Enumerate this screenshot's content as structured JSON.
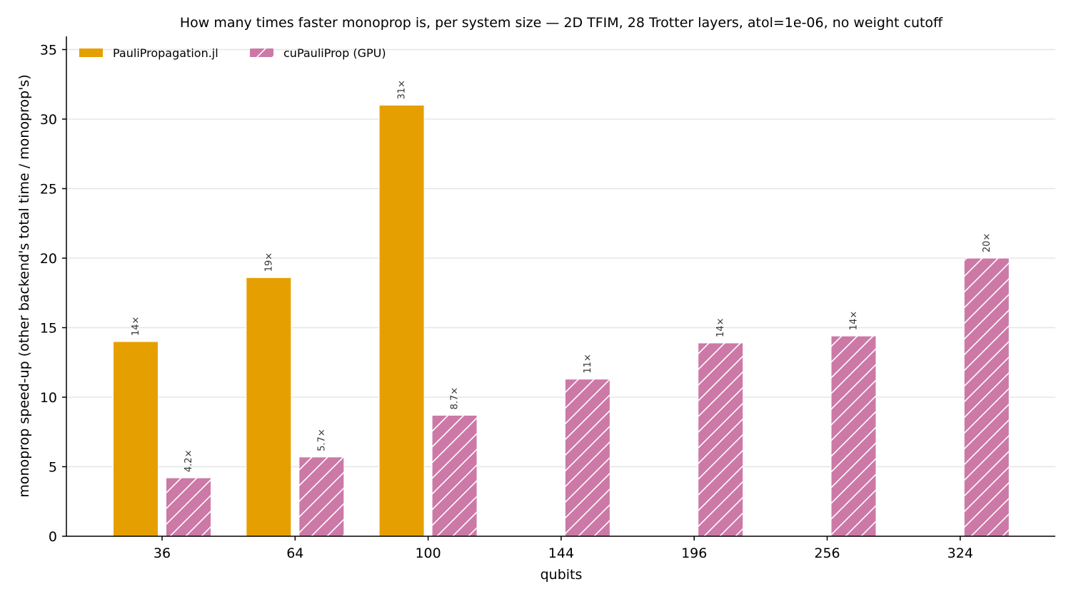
{
  "chart_data": {
    "type": "bar",
    "title": "How many times faster monoprop is, per system size — 2D TFIM, 28 Trotter layers, atol=1e-06, no weight cutoff",
    "xlabel": "qubits",
    "ylabel": "monoprop speed-up  (other backend's total time / monoprop's)",
    "categories": [
      "36",
      "64",
      "100",
      "144",
      "196",
      "256",
      "324"
    ],
    "ylim": [
      0,
      36
    ],
    "yticks": [
      0,
      5,
      10,
      15,
      20,
      25,
      30,
      35
    ],
    "grid": "horizontal",
    "legend_position": "top-left",
    "series": [
      {
        "name": "PauliPropagation.jl",
        "color": "#E69F00",
        "pattern": "solid",
        "values": [
          14.0,
          18.6,
          31.0,
          null,
          null,
          null,
          null
        ],
        "labels": [
          "14×",
          "19×",
          "31×",
          "",
          "",
          "",
          ""
        ]
      },
      {
        "name": "cuPauliProp (GPU)",
        "color": "#CC79A7",
        "pattern": "hatch",
        "values": [
          4.2,
          5.7,
          8.7,
          11.3,
          13.9,
          14.4,
          20.0
        ],
        "labels": [
          "4.2×",
          "5.7×",
          "8.7×",
          "11×",
          "14×",
          "14×",
          "20×"
        ]
      }
    ]
  }
}
